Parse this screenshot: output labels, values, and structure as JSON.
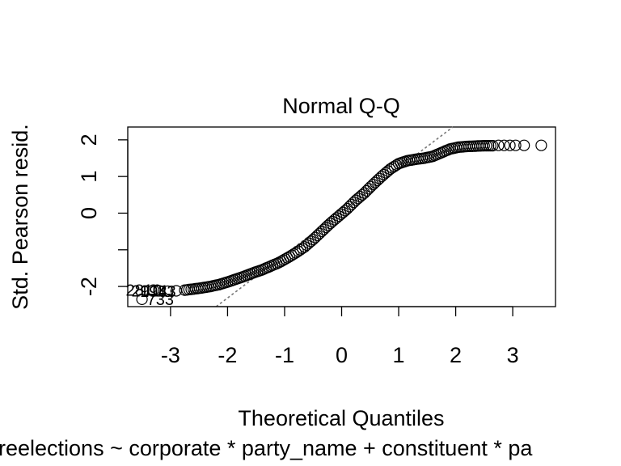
{
  "chart_data": {
    "type": "scatter",
    "subtype": "normal-qq",
    "title": "Normal Q-Q",
    "xlabel": "Theoretical Quantiles",
    "ylabel": "Std. Pearson resid.",
    "subcaption": "reelections ~ corporate * party_name + constituent * pa",
    "xlim": [
      -3.75,
      3.75
    ],
    "ylim": [
      -2.55,
      2.35
    ],
    "x_ticks": [
      -3,
      -2,
      -1,
      0,
      1,
      2,
      3
    ],
    "y_ticks": [
      -2,
      -1,
      0,
      1,
      2
    ],
    "y_tick_labels": [
      "-2",
      "",
      "0",
      "1",
      "2"
    ],
    "grid": false,
    "reference_line": {
      "style": "dotted",
      "color": "#777777",
      "points": [
        [
          -2.2,
          -2.55
        ],
        [
          1.95,
          2.35
        ]
      ]
    },
    "labeled_points": [
      {
        "label": "733",
        "x": -3.5,
        "y": -2.35
      },
      {
        "label": "2810",
        "x": -3.3,
        "y": -2.1
      },
      {
        "label": "2914",
        "x": -3.2,
        "y": -2.12
      },
      {
        "label": "1933",
        "x": -3.05,
        "y": -2.13
      }
    ],
    "curve_points": [
      [
        -3.5,
        -2.35
      ],
      [
        -3.3,
        -2.1
      ],
      [
        -3.2,
        -2.12
      ],
      [
        -3.05,
        -2.13
      ],
      [
        -2.9,
        -2.12
      ],
      [
        -2.75,
        -2.1
      ],
      [
        -2.6,
        -2.07
      ],
      [
        -2.45,
        -2.04
      ],
      [
        -2.3,
        -2.0
      ],
      [
        -2.15,
        -1.95
      ],
      [
        -2.0,
        -1.88
      ],
      [
        -1.85,
        -1.8
      ],
      [
        -1.7,
        -1.72
      ],
      [
        -1.55,
        -1.63
      ],
      [
        -1.4,
        -1.55
      ],
      [
        -1.25,
        -1.45
      ],
      [
        -1.1,
        -1.35
      ],
      [
        -0.95,
        -1.22
      ],
      [
        -0.8,
        -1.08
      ],
      [
        -0.65,
        -0.92
      ],
      [
        -0.5,
        -0.72
      ],
      [
        -0.35,
        -0.5
      ],
      [
        -0.2,
        -0.28
      ],
      [
        -0.05,
        -0.08
      ],
      [
        0.1,
        0.12
      ],
      [
        0.25,
        0.35
      ],
      [
        0.4,
        0.55
      ],
      [
        0.55,
        0.78
      ],
      [
        0.7,
        1.0
      ],
      [
        0.85,
        1.2
      ],
      [
        1.0,
        1.35
      ],
      [
        1.15,
        1.43
      ],
      [
        1.3,
        1.47
      ],
      [
        1.45,
        1.5
      ],
      [
        1.6,
        1.55
      ],
      [
        1.75,
        1.65
      ],
      [
        1.9,
        1.75
      ],
      [
        2.05,
        1.8
      ],
      [
        2.2,
        1.82
      ],
      [
        2.35,
        1.83
      ],
      [
        2.5,
        1.84
      ],
      [
        2.65,
        1.84
      ],
      [
        2.75,
        1.85
      ],
      [
        2.85,
        1.85
      ],
      [
        2.95,
        1.85
      ],
      [
        3.05,
        1.85
      ],
      [
        3.2,
        1.85
      ],
      [
        3.5,
        1.85
      ]
    ]
  }
}
